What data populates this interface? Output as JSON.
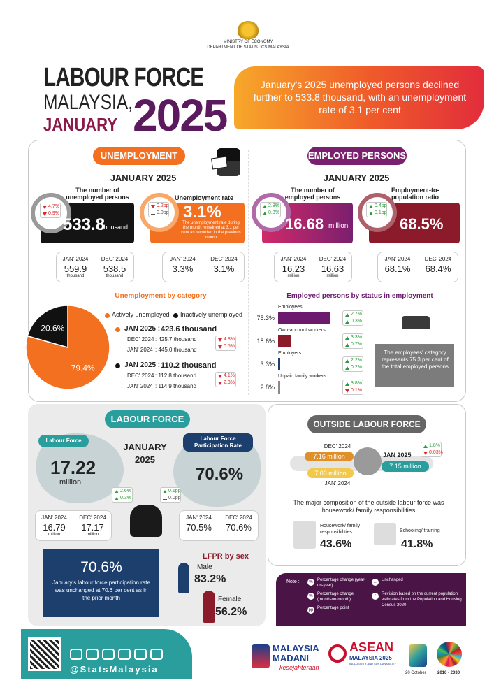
{
  "header": {
    "ministry": "MINISTRY OF ECONOMY",
    "department": "DEPARTMENT OF STATISTICS MALAYSIA",
    "title": [
      "LABOUR FORCE",
      "MALAYSIA,",
      "JANUARY",
      "2025"
    ],
    "banner": "January's 2025 unemployed persons declined further to 533.8 thousand, with an unemployment rate of 3.1 per cent"
  },
  "unemployment": {
    "heading": "UNEMPLOYMENT",
    "period": "JANUARY 2025",
    "persons": {
      "label": "The number of unemployed persons",
      "value": "533.8",
      "unit": "thousand",
      "changes": [
        {
          "dir": "down",
          "text": "4.7%"
        },
        {
          "dir": "down",
          "text": "0.9%"
        }
      ],
      "compare": [
        {
          "period": "JAN' 2024",
          "value": "559.9",
          "unit": "thousand"
        },
        {
          "period": "DEC' 2024",
          "value": "538.5",
          "unit": "thousand"
        }
      ]
    },
    "rate": {
      "label": "Unemployment rate",
      "value": "3.1%",
      "note": "The unemployment rate during the month remained at 3.1 per cent as recorded in the previous month",
      "changes": [
        {
          "dir": "down",
          "text": "0.2pp"
        },
        {
          "dir": "same",
          "text": "0.0pp"
        }
      ],
      "compare": [
        {
          "period": "JAN' 2024",
          "value": "3.3%"
        },
        {
          "period": "DEC' 2024",
          "value": "3.1%"
        }
      ]
    }
  },
  "employed": {
    "heading": "EMPLOYED PERSONS",
    "period": "JANUARY 2025",
    "persons": {
      "label": "The number of employed persons",
      "value": "16.68",
      "unit": "million",
      "changes": [
        {
          "dir": "up",
          "text": "2.8%"
        },
        {
          "dir": "up",
          "text": "0.3%"
        }
      ],
      "compare": [
        {
          "period": "JAN' 2024",
          "value": "16.23",
          "unit": "million"
        },
        {
          "period": "DEC' 2024",
          "value": "16.63",
          "unit": "million"
        }
      ]
    },
    "ratio": {
      "label": "Employment-to-population ratio",
      "value": "68.5%",
      "changes": [
        {
          "dir": "up",
          "text": "0.4pp"
        },
        {
          "dir": "up",
          "text": "0.1pp"
        }
      ],
      "compare": [
        {
          "period": "JAN' 2024",
          "value": "68.1%"
        },
        {
          "period": "DEC' 2024",
          "value": "68.4%"
        }
      ]
    }
  },
  "by_category": {
    "title": "Unemployment by category",
    "legend": [
      "Actively unemployed",
      "Inactively unemployed"
    ],
    "colors": [
      "#f37021",
      "#111111"
    ],
    "shares": [
      79.4,
      20.6
    ],
    "share_labels": [
      "79.4%",
      "20.6%"
    ],
    "groups": [
      {
        "period": "JAN 2025 :",
        "value": "423.6 thousand",
        "rows": [
          {
            "period": "DEC' 2024",
            "value": ":  425.7 thousand"
          },
          {
            "period": "JAN' 2024",
            "value": ":  445.0 thousand"
          }
        ],
        "changes": [
          {
            "dir": "down",
            "text": "4.8%"
          },
          {
            "dir": "down",
            "text": "0.5%"
          }
        ]
      },
      {
        "period": "JAN 2025 :",
        "value": "110.2 thousand",
        "rows": [
          {
            "period": "DEC' 2024",
            "value": ":  112.8 thousand"
          },
          {
            "period": "JAN' 2024",
            "value": ":  114.9 thousand"
          }
        ],
        "changes": [
          {
            "dir": "down",
            "text": "4.1%"
          },
          {
            "dir": "down",
            "text": "2.3%"
          }
        ]
      }
    ]
  },
  "status": {
    "title": "Employed persons by status in employment",
    "categories": [
      "Employees",
      "Own-account workers",
      "Employers",
      "Unpaid family workers"
    ],
    "values": [
      75.3,
      18.6,
      3.3,
      2.8
    ],
    "value_labels": [
      "75.3%",
      "18.6%",
      "3.3%",
      "2.8%"
    ],
    "colors": [
      "#6b1a6e",
      "#8b1a2a",
      "#1c3f6e",
      "#8a8a8a"
    ],
    "changes": [
      [
        {
          "dir": "up",
          "text": "2.7%"
        },
        {
          "dir": "up",
          "text": "0.3%"
        }
      ],
      [
        {
          "dir": "up",
          "text": "3.3%"
        },
        {
          "dir": "up",
          "text": "0.7%"
        }
      ],
      [
        {
          "dir": "up",
          "text": "2.2%"
        },
        {
          "dir": "up",
          "text": "0.2%"
        }
      ],
      [
        {
          "dir": "up",
          "text": "3.8%"
        },
        {
          "dir": "down",
          "text": "0.1%"
        }
      ]
    ],
    "note": "The employees' category represents 75.3 per cent of the total employed persons"
  },
  "labour_force": {
    "heading": "LABOUR FORCE",
    "period": [
      "JANUARY",
      "2025"
    ],
    "force": {
      "label": "Labour Force",
      "value": "17.22",
      "unit": "million",
      "changes": [
        {
          "dir": "up",
          "text": "2.6%"
        },
        {
          "dir": "up",
          "text": "0.3%"
        }
      ],
      "compare": [
        {
          "period": "JAN' 2024",
          "value": "16.79",
          "unit": "million"
        },
        {
          "period": "DEC' 2024",
          "value": "17.17",
          "unit": "million"
        }
      ]
    },
    "lfpr": {
      "label": "Labour Force Participation Rate",
      "value": "70.6%",
      "changes": [
        {
          "dir": "up",
          "text": "0.1pp"
        },
        {
          "dir": "same",
          "text": "0.0pp"
        }
      ],
      "compare": [
        {
          "period": "JAN' 2024",
          "value": "70.5%"
        },
        {
          "period": "DEC' 2024",
          "value": "70.6%"
        }
      ]
    },
    "highlight": {
      "value": "70.6%",
      "text": "January's labour force participation rate was unchanged at 70.6 per cent as in the prior month"
    },
    "by_sex": {
      "title": "LFPR by sex",
      "groups": [
        {
          "label": "Male",
          "value": "83.2%"
        },
        {
          "label": "Female",
          "value": "56.2%"
        }
      ]
    }
  },
  "outside": {
    "heading": "OUTSIDE LABOUR FORCE",
    "timeline": [
      {
        "period": "DEC' 2024",
        "value": "7.16 million"
      },
      {
        "period": "JAN 2025",
        "value": "7.15 million"
      },
      {
        "period": "JAN' 2024",
        "value": "7.03 million"
      }
    ],
    "changes": [
      {
        "dir": "up",
        "text": "1.8%"
      },
      {
        "dir": "down",
        "text": "0.03%"
      }
    ],
    "summary": "The major composition of the outside labour force was housework/ family responsibilities",
    "components": [
      {
        "label": "Housework/ family responsibilities",
        "value": "43.6%"
      },
      {
        "label": "Schooling/ training",
        "value": "41.8%"
      }
    ]
  },
  "note": {
    "label": "Note :",
    "items": [
      {
        "symbol": "%",
        "text": "Percentage change (year-on-year)"
      },
      {
        "symbol": "%",
        "text": "Percentage change (month-on-month)"
      },
      {
        "symbol": "pp",
        "text": "Percentage point"
      },
      {
        "symbol": "↔",
        "text": "Unchanged"
      },
      {
        "symbol": "r",
        "text": "Revision based on the current population estimates from the Population and Housing Census 2020"
      }
    ]
  },
  "footer": {
    "handle": "@StatsMalaysia",
    "logos": [
      "MALAYSIA",
      "MADANI",
      "kesejahteraan",
      "ASEAN",
      "MALAYSIA 2025",
      "INCLUSIVITY AND SUSTAINABILITY",
      "20 October",
      "2016 - 2030"
    ]
  }
}
